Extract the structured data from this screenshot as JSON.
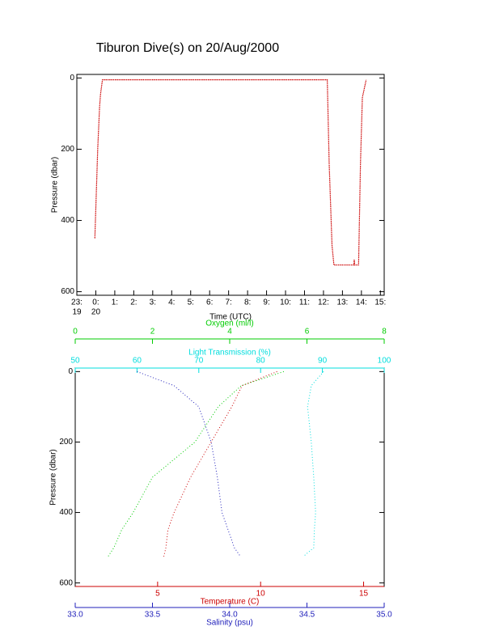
{
  "chart_data": [
    {
      "type": "line",
      "title": "Tiburon Dive(s) on 20/Aug/2000",
      "xlabel": "Time (UTC)",
      "ylabel": "Pressure (dbar)",
      "xlim": [
        -1,
        15.2
      ],
      "ylim": [
        -10,
        610
      ],
      "y_inverted": true,
      "xticks": [
        {
          "value": -1,
          "label": "23:"
        },
        {
          "value": 0,
          "label": "0:"
        },
        {
          "value": 1,
          "label": "1:"
        },
        {
          "value": 2,
          "label": "2:"
        },
        {
          "value": 3,
          "label": "3:"
        },
        {
          "value": 4,
          "label": "4:"
        },
        {
          "value": 5,
          "label": "5:"
        },
        {
          "value": 6,
          "label": "6:"
        },
        {
          "value": 7,
          "label": "7:"
        },
        {
          "value": 8,
          "label": "8:"
        },
        {
          "value": 9,
          "label": "9:"
        },
        {
          "value": 10,
          "label": "10:"
        },
        {
          "value": 11,
          "label": "11:"
        },
        {
          "value": 12,
          "label": "12:"
        },
        {
          "value": 13,
          "label": "13:"
        },
        {
          "value": 14,
          "label": "14:"
        },
        {
          "value": 15,
          "label": "15:"
        }
      ],
      "xtick_sublabels": [
        {
          "value": -1,
          "label": "19"
        },
        {
          "value": 0,
          "label": "20"
        }
      ],
      "yticks": [
        0,
        200,
        400,
        600
      ],
      "color": "#cc0000",
      "x": [
        -0.05,
        0.1,
        0.2,
        0.25,
        0.35,
        12.2,
        12.3,
        12.45,
        12.55,
        13.6,
        13.62,
        13.65,
        13.85,
        13.95,
        14.05,
        14.25
      ],
      "y": [
        450,
        200,
        80,
        45,
        5,
        5,
        240,
        470,
        525,
        525,
        510,
        525,
        525,
        240,
        55,
        5
      ]
    },
    {
      "type": "profile",
      "ylabel": "Pressure (dbar)",
      "ylim": [
        -10,
        610
      ],
      "y_inverted": true,
      "yticks": [
        0,
        200,
        400,
        600
      ],
      "y": [
        0,
        40,
        100,
        200,
        300,
        400,
        450,
        500,
        525
      ],
      "axes": [
        {
          "label": "Light Transmission (%)",
          "position": "top",
          "color": "#00dddd",
          "lim": [
            50,
            100
          ],
          "ticks": [
            50,
            60,
            70,
            80,
            90,
            100
          ],
          "values": [
            90.2,
            88.2,
            87.6,
            88.2,
            88.6,
            88.9,
            88.7,
            88.6,
            86.9
          ]
        },
        {
          "label": "Oxygen (ml/l)",
          "position": "top",
          "color": "#00cc00",
          "lim": [
            0,
            8
          ],
          "ticks": [
            0,
            2,
            4,
            6,
            8
          ],
          "values": [
            5.4,
            4.3,
            3.7,
            3.1,
            2.0,
            1.5,
            1.2,
            1.0,
            0.85
          ]
        },
        {
          "label": "Temperature (C)",
          "position": "bottom",
          "color": "#cc0000",
          "lim": [
            1,
            16
          ],
          "ticks": [
            5,
            10,
            15
          ],
          "values": [
            10.8,
            9.1,
            8.6,
            7.6,
            6.6,
            5.8,
            5.5,
            5.4,
            5.3
          ]
        },
        {
          "label": "Salinity (psu)",
          "position": "bottom",
          "color": "#2222bb",
          "lim": [
            33,
            35
          ],
          "ticks": [
            {
              "value": 33,
              "label": "33.0"
            },
            {
              "value": 33.5,
              "label": "33.5"
            },
            {
              "value": 34,
              "label": "34.0"
            },
            {
              "value": 34.5,
              "label": "34.5"
            },
            {
              "value": 35,
              "label": "35.0"
            }
          ],
          "values": [
            33.4,
            33.64,
            33.8,
            33.88,
            33.92,
            33.95,
            33.99,
            34.03,
            34.07
          ]
        }
      ]
    }
  ]
}
